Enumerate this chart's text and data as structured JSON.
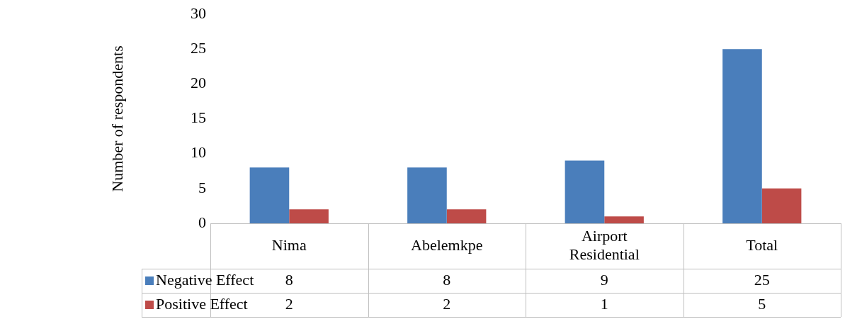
{
  "chart_data": {
    "type": "bar",
    "ylabel": "Number of respondents",
    "categories": [
      "Nima",
      "Abelemkpe",
      "Airport Residential",
      "Total"
    ],
    "series": [
      {
        "name": "Negative Effect",
        "color": "#4a7ebb",
        "values": [
          8,
          8,
          9,
          25
        ]
      },
      {
        "name": "Positive Effect",
        "color": "#be4b48",
        "values": [
          2,
          2,
          1,
          5
        ]
      }
    ],
    "ylim": [
      0,
      30
    ],
    "yticks": [
      0,
      5,
      10,
      15,
      20,
      25,
      30
    ],
    "grid": false,
    "legend": "bottom left",
    "data_labels": true
  }
}
